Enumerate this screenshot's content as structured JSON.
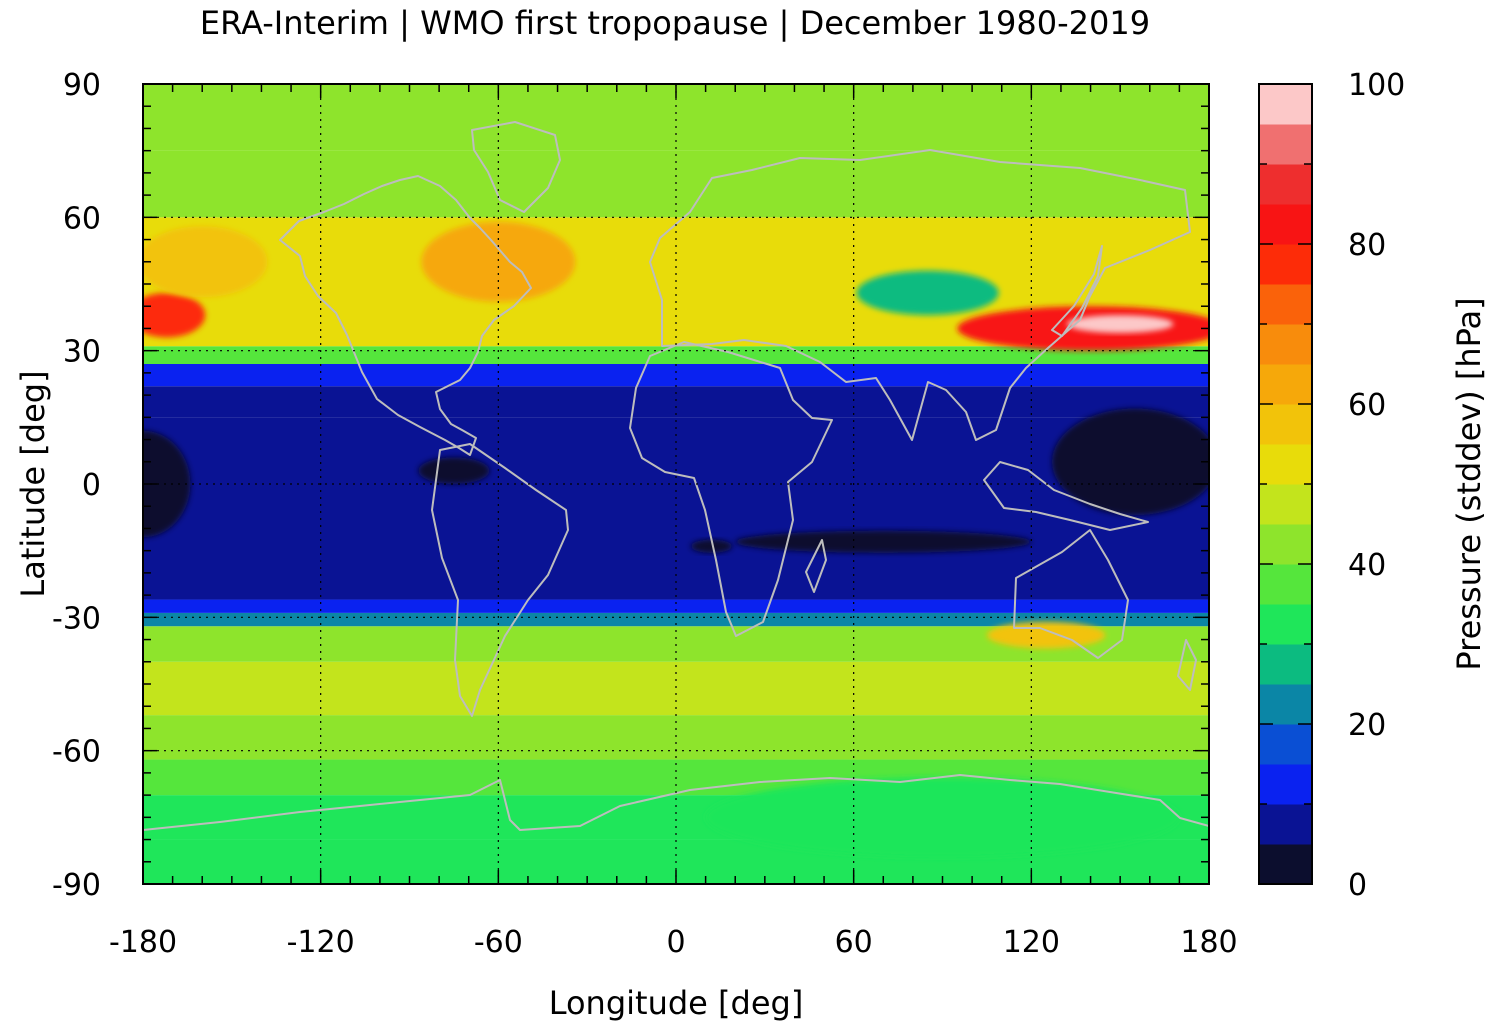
{
  "chart_data": {
    "type": "heatmap",
    "title": "ERA-Interim | WMO first tropopause | December 1980-2019",
    "xlabel": "Longitude [deg]",
    "ylabel": "Latitude [deg]",
    "xlim": [
      -180,
      180
    ],
    "ylim": [
      -90,
      90
    ],
    "xticks": [
      -180,
      -120,
      -60,
      0,
      60,
      120,
      180
    ],
    "xtick_labels": [
      "-180",
      "-120",
      "-60",
      "0",
      "60",
      "120",
      "180"
    ],
    "yticks": [
      90,
      60,
      30,
      0,
      -30,
      -60,
      -90
    ],
    "ytick_labels": [
      "90",
      "60",
      "30",
      "0",
      "-30",
      "-60",
      "-90"
    ],
    "grid": "dotted",
    "colorbar": {
      "label": "Pressure (stddev) [hPa]",
      "range": [
        0,
        100
      ],
      "ticks": [
        0,
        20,
        40,
        60,
        80,
        100
      ],
      "tick_labels": [
        "0",
        "20",
        "40",
        "60",
        "80",
        "100"
      ],
      "colors": [
        "#0c0e2e",
        "#0a1394",
        "#0a22f0",
        "#0a4fd4",
        "#0b86a6",
        "#0cbb80",
        "#1fe65a",
        "#55e63c",
        "#8ee42c",
        "#c3e41c",
        "#e8dc0a",
        "#f2c30a",
        "#f6a80a",
        "#f88c0c",
        "#fa620a",
        "#fd2c08",
        "#f81414",
        "#ee2e2e",
        "#f07070",
        "#fcc8c8"
      ]
    },
    "bands": [
      {
        "lat": [
          -90,
          -80
        ],
        "value": 32
      },
      {
        "lat": [
          -80,
          -70
        ],
        "value": 30
      },
      {
        "lat": [
          -70,
          -62
        ],
        "value": 35
      },
      {
        "lat": [
          -62,
          -52
        ],
        "value": 42
      },
      {
        "lat": [
          -52,
          -40
        ],
        "value": 46
      },
      {
        "lat": [
          -40,
          -32
        ],
        "value": 44
      },
      {
        "lat": [
          -32,
          -29
        ],
        "value": 22
      },
      {
        "lat": [
          -29,
          -26
        ],
        "value": 10
      },
      {
        "lat": [
          -26,
          15
        ],
        "value": 6
      },
      {
        "lat": [
          15,
          22
        ],
        "value": 9
      },
      {
        "lat": [
          22,
          27
        ],
        "value": 14
      },
      {
        "lat": [
          27,
          31
        ],
        "value": 35
      },
      {
        "lat": [
          31,
          45
        ],
        "value": 52
      },
      {
        "lat": [
          45,
          60
        ],
        "value": 50
      },
      {
        "lat": [
          60,
          75
        ],
        "value": 44
      },
      {
        "lat": [
          75,
          90
        ],
        "value": 40
      }
    ],
    "features": [
      {
        "lon": -180,
        "lat": 0,
        "rlon": 16,
        "rlat": 12,
        "value": 2
      },
      {
        "lon": 155,
        "lat": 5,
        "rlon": 28,
        "rlat": 12,
        "value": 2
      },
      {
        "lon": 70,
        "lat": -13,
        "rlon": 50,
        "rlat": 2.5,
        "value": 2
      },
      {
        "lon": 12,
        "lat": -14,
        "rlon": 7,
        "rlat": 1.5,
        "value": 2
      },
      {
        "lon": -75,
        "lat": 3,
        "rlon": 12,
        "rlat": 3,
        "value": 2
      },
      {
        "lon": 140,
        "lat": 35,
        "rlon": 45,
        "rlat": 5,
        "value": 82
      },
      {
        "lon": 150,
        "lat": 36,
        "rlon": 18,
        "rlat": 2,
        "value": 98
      },
      {
        "lon": -172,
        "lat": 38,
        "rlon": 13,
        "rlat": 5,
        "value": 76
      },
      {
        "lon": 85,
        "lat": 43,
        "rlon": 24,
        "rlat": 5,
        "value": 28
      },
      {
        "lon": -60,
        "lat": 50,
        "rlon": 26,
        "rlat": 9,
        "value": 62
      },
      {
        "lon": -160,
        "lat": 50,
        "rlon": 22,
        "rlat": 8,
        "value": 58
      },
      {
        "lon": 90,
        "lat": -75,
        "rlon": 80,
        "rlat": 9,
        "value": 30
      },
      {
        "lon": 125,
        "lat": -34,
        "rlon": 20,
        "rlat": 3,
        "value": 58
      }
    ]
  }
}
